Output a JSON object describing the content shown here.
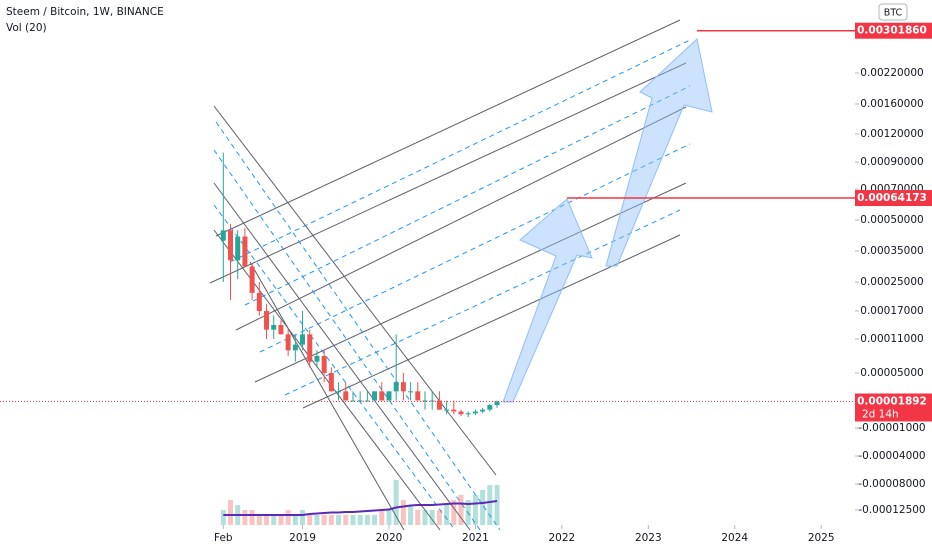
{
  "chart_data": {
    "type": "candlestick",
    "title": "Steem / Bitcoin, 1W, BINANCE",
    "indicator": "Vol (20)",
    "currency": "BTC",
    "xlim": [
      "2015-07",
      "2025-05"
    ],
    "xticks": [
      {
        "value": "2018-02",
        "label": "Feb"
      },
      {
        "value": "2019-01",
        "label": "2019"
      },
      {
        "value": "2020-01",
        "label": "2020"
      },
      {
        "value": "2021-01",
        "label": "2021"
      },
      {
        "value": "2022-01",
        "label": "2022"
      },
      {
        "value": "2023-01",
        "label": "2023"
      },
      {
        "value": "2024-01",
        "label": "2024"
      },
      {
        "value": "2025-01",
        "label": "2025"
      }
    ],
    "yticks": [
      {
        "value": 0.0022,
        "label": "0.00220000"
      },
      {
        "value": 0.0016,
        "label": "0.00160000"
      },
      {
        "value": 0.0012,
        "label": "0.00120000"
      },
      {
        "value": 0.0009,
        "label": "0.00090000"
      },
      {
        "value": 0.0007,
        "label": "0.00070000"
      },
      {
        "value": 0.0005,
        "label": "0.00050000"
      },
      {
        "value": 0.00035,
        "label": "0.00035000"
      },
      {
        "value": 0.00025,
        "label": "0.00025000"
      },
      {
        "value": 0.00017,
        "label": "0.00017000"
      },
      {
        "value": 0.00011,
        "label": "0.00011000"
      },
      {
        "value": 5e-05,
        "label": "0.00005000"
      },
      {
        "value": -1e-05,
        "label": "-0.00001000"
      },
      {
        "value": -4e-05,
        "label": "-0.00004000"
      },
      {
        "value": -8e-05,
        "label": "-0.00008000"
      },
      {
        "value": -0.000125,
        "label": "-0.00012500"
      }
    ],
    "price_levels": [
      {
        "value": 0.0030186,
        "label": "0.00301860"
      },
      {
        "value": 0.00064173,
        "label": "0.00064173"
      }
    ],
    "last_price": {
      "value": 1.892e-05,
      "label": "0.00001892",
      "countdown": "2d 14h"
    },
    "x": [
      "2018-02",
      "2018-03",
      "2018-04",
      "2018-05",
      "2018-06",
      "2018-07",
      "2018-08",
      "2018-09",
      "2018-10",
      "2018-11",
      "2018-12",
      "2019-01",
      "2019-02",
      "2019-03",
      "2019-04",
      "2019-05",
      "2019-06",
      "2019-07",
      "2019-08",
      "2019-09",
      "2019-10",
      "2019-11",
      "2019-12",
      "2020-01",
      "2020-02",
      "2020-03",
      "2020-04",
      "2020-05",
      "2020-06",
      "2020-07",
      "2020-08",
      "2020-09",
      "2020-10",
      "2020-11",
      "2020-12",
      "2021-01",
      "2021-02",
      "2021-03",
      "2021-04"
    ],
    "open": [
      0.0004,
      0.00045,
      0.00032,
      0.00042,
      0.0003,
      0.00022,
      0.00017,
      0.00013,
      0.00014,
      0.00012,
      9e-05,
      0.0001,
      0.00012,
      7e-05,
      8e-05,
      5e-05,
      3e-05,
      3e-05,
      2e-05,
      2e-05,
      2e-05,
      2e-05,
      3e-05,
      2e-05,
      3e-05,
      4e-05,
      3e-05,
      3e-05,
      2e-05,
      2e-05,
      2e-05,
      1e-05,
      1e-05,
      8e-06,
      5e-06,
      6e-06,
      8e-06,
      1e-05,
      1.5e-05
    ],
    "high": [
      0.001,
      0.00048,
      0.00045,
      0.00046,
      0.00031,
      0.00025,
      0.00019,
      0.00016,
      0.00015,
      0.00013,
      0.00012,
      0.00017,
      0.00013,
      9e-05,
      9e-05,
      6e-05,
      4e-05,
      4e-05,
      3e-05,
      3e-05,
      3e-05,
      3e-05,
      4e-05,
      3e-05,
      0.00012,
      5e-05,
      4e-05,
      4e-05,
      3e-05,
      3e-05,
      3e-05,
      2e-05,
      2e-05,
      1e-05,
      8e-06,
      1e-05,
      1.2e-05,
      1.6e-05,
      2e-05
    ],
    "low": [
      0.00025,
      0.0002,
      0.00026,
      0.0003,
      0.0002,
      0.00016,
      0.00011,
      0.00011,
      0.00012,
      8e-05,
      7e-05,
      9e-05,
      6e-05,
      6e-05,
      4e-05,
      3e-05,
      2e-05,
      2e-05,
      2e-05,
      2e-05,
      2e-05,
      2e-05,
      2e-05,
      2e-05,
      2e-05,
      2e-05,
      2e-05,
      2e-05,
      1e-05,
      1e-05,
      1e-05,
      5e-06,
      5e-06,
      3e-06,
      2e-06,
      4e-06,
      6e-06,
      8e-06,
      1.2e-05
    ],
    "close": [
      0.00045,
      0.00032,
      0.00042,
      0.0003,
      0.00022,
      0.00017,
      0.00013,
      0.00014,
      0.00012,
      9e-05,
      0.0001,
      0.00012,
      7e-05,
      8e-05,
      5e-05,
      3e-05,
      3e-05,
      2e-05,
      2e-05,
      2e-05,
      2e-05,
      3e-05,
      2e-05,
      3e-05,
      4e-05,
      3e-05,
      3e-05,
      2e-05,
      2e-05,
      2e-05,
      1e-05,
      1e-05,
      8e-06,
      5e-06,
      6e-06,
      8e-06,
      1e-05,
      1.5e-05,
      1.892e-05
    ],
    "volume": [
      3,
      5,
      4,
      3,
      3,
      2,
      2,
      2,
      2,
      3,
      2,
      3,
      2,
      2,
      2,
      2,
      2,
      2,
      2,
      2,
      2,
      2,
      3,
      3,
      9,
      5,
      4,
      3,
      3,
      3,
      3,
      4,
      5,
      6,
      5,
      6,
      7,
      8,
      8
    ],
    "volume_ma": [
      2,
      2,
      2,
      2,
      2,
      2,
      2,
      2,
      2,
      2,
      2,
      2,
      2.2,
      2.3,
      2.4,
      2.5,
      2.5,
      2.6,
      2.6,
      2.7,
      2.8,
      2.9,
      3,
      3.1,
      3.5,
      3.7,
      3.9,
      4,
      4,
      4,
      4.1,
      4.2,
      4.3,
      4.3,
      4.2,
      4.3,
      4.4,
      4.6,
      4.8
    ],
    "up_color": "#26a69a",
    "down_color": "#ef5350",
    "volume_ma_color": "#5b2bb5",
    "level_color": "#f23645"
  }
}
